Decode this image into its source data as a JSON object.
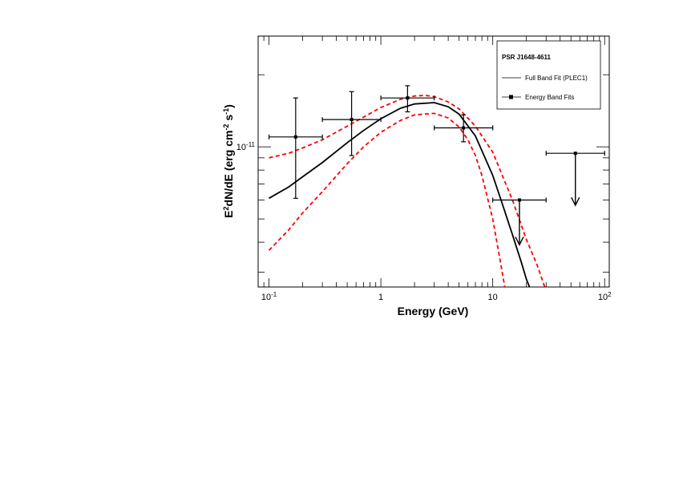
{
  "chart_data": {
    "type": "scatter",
    "title": "",
    "xlabel": "Energy (GeV)",
    "ylabel": "E2dN/dE (erg cm-2 s-1)",
    "xscale": "log",
    "yscale": "log",
    "xlim": [
      0.08,
      110
    ],
    "ylim": [
      2.6e-12,
      2.9e-11
    ],
    "grid": false,
    "legend": {
      "placement": "top-right",
      "title": "PSR J1648-4611",
      "entries": [
        "Full Band Fit (PLEC1)",
        "Energy Band Fits"
      ]
    },
    "x_tick_labels": [
      {
        "value": 0.1,
        "base": "10",
        "exp": "-1"
      },
      {
        "value": 1,
        "base": "1",
        "exp": ""
      },
      {
        "value": 10,
        "base": "10",
        "exp": ""
      },
      {
        "value": 100,
        "base": "10",
        "exp": "2"
      }
    ],
    "y_tick_labels": [
      {
        "value": 1e-11,
        "base": "10",
        "exp": "-11"
      }
    ],
    "series": [
      {
        "name": "Energy Band Fits",
        "style": "points-with-errorbars",
        "color": "#000000",
        "points": [
          {
            "x": 0.1732,
            "xlo": 0.1,
            "xhi": 0.3,
            "y": 1.1e-11,
            "ylo": 6.1e-12,
            "yhi": 1.6e-11
          },
          {
            "x": 0.5477,
            "xlo": 0.3,
            "xhi": 1.0,
            "y": 1.3e-11,
            "ylo": 9.2e-12,
            "yhi": 1.7e-11
          },
          {
            "x": 1.732,
            "xlo": 1.0,
            "xhi": 3.0,
            "y": 1.6e-11,
            "ylo": 1.4e-11,
            "yhi": 1.8e-11
          },
          {
            "x": 5.477,
            "xlo": 3.0,
            "xhi": 10.0,
            "y": 1.2e-11,
            "ylo": 1.05e-11,
            "yhi": 1.36e-11
          }
        ]
      },
      {
        "name": "Energy Band Fits",
        "style": "upper-limits",
        "color": "#000000",
        "points": [
          {
            "x": 17.32,
            "xlo": 10.0,
            "xhi": 30.0,
            "y": 6e-12,
            "arrow_to": 3.9e-12
          },
          {
            "x": 54.77,
            "xlo": 30.0,
            "xhi": 100.0,
            "y": 9.4e-12,
            "arrow_to": 5.7e-12
          }
        ]
      },
      {
        "name": "Full Band Fit (PLEC1)",
        "style": "line",
        "color": "#000000",
        "x": [
          0.1,
          0.15,
          0.2,
          0.3,
          0.5,
          0.7,
          1.0,
          1.5,
          2.0,
          3.0,
          4.0,
          5.0,
          7.0,
          10.0,
          12.0,
          15.0,
          18.0,
          20.0,
          22.0
        ],
        "y": [
          6.1e-12,
          6.8e-12,
          7.5e-12,
          8.6e-12,
          1.04e-11,
          1.17e-11,
          1.31e-11,
          1.45e-11,
          1.51e-11,
          1.53e-11,
          1.47e-11,
          1.37e-11,
          1.11e-11,
          7.6e-12,
          5.9e-12,
          4.3e-12,
          3.3e-12,
          2.8e-12,
          2.5e-12
        ]
      },
      {
        "name": "",
        "style": "dashed",
        "color": "#ff0000",
        "x": [
          0.1,
          0.15,
          0.2,
          0.3,
          0.5,
          0.7,
          1.0,
          1.5,
          2.0,
          2.5,
          3.0,
          4.0,
          5.0,
          7.0,
          10.0,
          15.0,
          20.0,
          25.0,
          30.0
        ],
        "y": [
          9e-12,
          9.4e-12,
          9.9e-12,
          1.07e-11,
          1.22e-11,
          1.33e-11,
          1.46e-11,
          1.58e-11,
          1.63e-11,
          1.64e-11,
          1.62e-11,
          1.54e-11,
          1.44e-11,
          1.22e-11,
          9.5e-12,
          6e-12,
          4.1e-12,
          3.2e-12,
          2.5e-12
        ]
      },
      {
        "name": "",
        "style": "dashed",
        "color": "#ff0000",
        "x": [
          0.1,
          0.15,
          0.2,
          0.3,
          0.5,
          0.7,
          1.0,
          1.5,
          2.0,
          3.0,
          4.0,
          5.0,
          6.0,
          7.0,
          8.0,
          10.0,
          12.0,
          13.0
        ],
        "y": [
          3.7e-12,
          4.5e-12,
          5.3e-12,
          6.5e-12,
          8.5e-12,
          1e-11,
          1.15e-11,
          1.29e-11,
          1.36e-11,
          1.38e-11,
          1.32e-11,
          1.21e-11,
          1.07e-11,
          9.2e-12,
          7.6e-12,
          5e-12,
          3.1e-12,
          2.5e-12
        ]
      }
    ]
  }
}
